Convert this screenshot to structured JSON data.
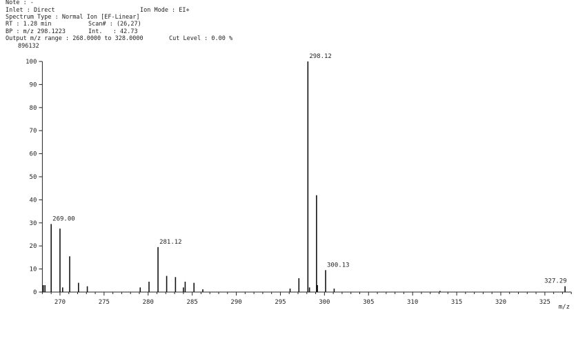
{
  "header": {
    "note": "Note : -",
    "inlet": "Inlet : Direct",
    "ion_mode": "Ion Mode : EI+",
    "spectrum_type": "Spectrum Type : Normal Ion [EF-Linear]",
    "rt": "RT : 1.28 min",
    "scan": "Scan# : (26,27)",
    "bp": "BP : m/z 298.1223",
    "int": "Int.   : 42.73",
    "range": "Output m/z range : 268.0000 to 328.0000",
    "cut_level": "Cut Level : 0.00 %",
    "max_count": "896132"
  },
  "chart_data": {
    "type": "bar",
    "title": "",
    "xlabel": "m/z",
    "ylabel": "",
    "xlim": [
      268,
      328
    ],
    "ylim": [
      0,
      100
    ],
    "x_ticks": [
      270,
      275,
      280,
      285,
      290,
      295,
      300,
      305,
      310,
      315,
      320,
      325
    ],
    "y_ticks": [
      0,
      10,
      20,
      30,
      40,
      50,
      60,
      70,
      80,
      90,
      100
    ],
    "grid": false,
    "color": "#111111",
    "peaks": [
      {
        "mz": 268.1,
        "rel": 3
      },
      {
        "mz": 268.3,
        "rel": 3
      },
      {
        "mz": 269.0,
        "rel": 29.5,
        "label": "269.00"
      },
      {
        "mz": 270.0,
        "rel": 27.5
      },
      {
        "mz": 270.3,
        "rel": 2
      },
      {
        "mz": 271.1,
        "rel": 15.5
      },
      {
        "mz": 272.1,
        "rel": 4
      },
      {
        "mz": 273.1,
        "rel": 2.5
      },
      {
        "mz": 279.1,
        "rel": 2
      },
      {
        "mz": 280.1,
        "rel": 4.5
      },
      {
        "mz": 281.12,
        "rel": 19.5,
        "label": "281.12"
      },
      {
        "mz": 282.1,
        "rel": 7
      },
      {
        "mz": 283.1,
        "rel": 6.5
      },
      {
        "mz": 284.0,
        "rel": 2
      },
      {
        "mz": 284.2,
        "rel": 4.5
      },
      {
        "mz": 285.2,
        "rel": 4
      },
      {
        "mz": 286.2,
        "rel": 1.2
      },
      {
        "mz": 296.1,
        "rel": 1.5
      },
      {
        "mz": 297.1,
        "rel": 6
      },
      {
        "mz": 298.12,
        "rel": 100,
        "label": "298.12"
      },
      {
        "mz": 298.3,
        "rel": 2
      },
      {
        "mz": 299.1,
        "rel": 42
      },
      {
        "mz": 299.2,
        "rel": 3
      },
      {
        "mz": 300.13,
        "rel": 9.5,
        "label": "300.13"
      },
      {
        "mz": 301.1,
        "rel": 1.5
      },
      {
        "mz": 313.1,
        "rel": 0.5
      },
      {
        "mz": 327.29,
        "rel": 2.5,
        "label": "327.29"
      }
    ]
  }
}
